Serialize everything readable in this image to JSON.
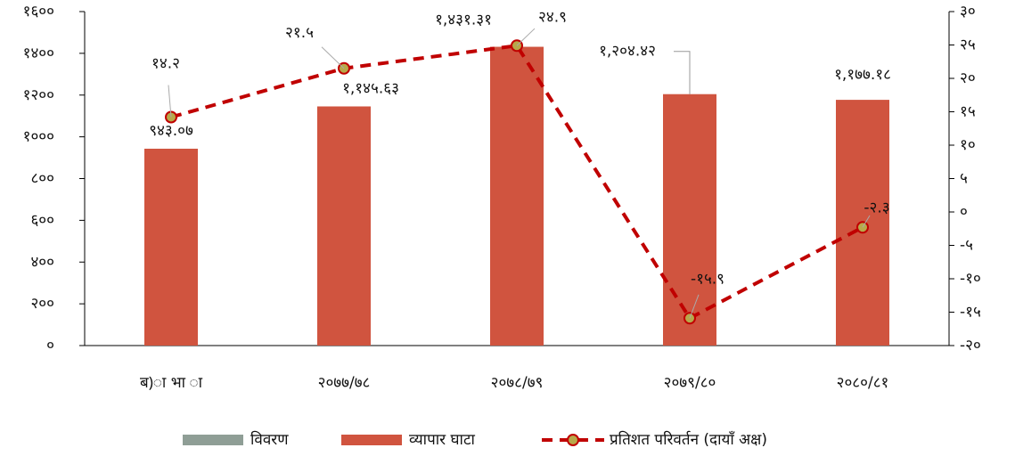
{
  "chart_data": {
    "type": "bar_line",
    "categories": [
      "ब)ा भा ा",
      "२०७७/७८",
      "२०७८/७९",
      "२०७९/८०",
      "२०८०/८१"
    ],
    "series": [
      {
        "name": "विवरण",
        "color": "#8f9e96",
        "values": [
          null,
          null,
          null,
          null,
          null
        ]
      },
      {
        "name": "व्यापार घाटा",
        "color": "#d0543f",
        "values": [
          943.07,
          1145.63,
          1431.31,
          1204.42,
          1177.18
        ],
        "value_labels": [
          "९४३.०७",
          "१,१४५.६३",
          "१,४३१.३१",
          "१,२०४.४२",
          "१,१७७.१८"
        ]
      },
      {
        "name": "प्रतिशत परिवर्तन (दायाँ अक्ष)",
        "color": "#c00000",
        "marker_color": "#b8a84a",
        "axis": "y2",
        "line_style": "dashed",
        "values": [
          14.2,
          21.5,
          24.9,
          -15.9,
          -2.3
        ],
        "value_labels": [
          "१४.२",
          "२१.५",
          "२४.९",
          "-१५.९",
          "-२.३"
        ]
      }
    ],
    "ylim": [
      0,
      1600
    ],
    "yticks": [
      {
        "value": 0,
        "label": "०"
      },
      {
        "value": 200,
        "label": "२००"
      },
      {
        "value": 400,
        "label": "४००"
      },
      {
        "value": 600,
        "label": "६००"
      },
      {
        "value": 800,
        "label": "८००"
      },
      {
        "value": 1000,
        "label": "१०००"
      },
      {
        "value": 1200,
        "label": "१२००"
      },
      {
        "value": 1400,
        "label": "१४००"
      },
      {
        "value": 1600,
        "label": "१६००"
      }
    ],
    "y2lim": [
      -20,
      30
    ],
    "y2ticks": [
      {
        "value": -20,
        "label": "-२०"
      },
      {
        "value": -15,
        "label": "-१५"
      },
      {
        "value": -10,
        "label": "-१०"
      },
      {
        "value": -5,
        "label": "-५"
      },
      {
        "value": 0,
        "label": "०"
      },
      {
        "value": 5,
        "label": "५"
      },
      {
        "value": 10,
        "label": "१०"
      },
      {
        "value": 15,
        "label": "१५"
      },
      {
        "value": 20,
        "label": "२०"
      },
      {
        "value": 25,
        "label": "२५"
      },
      {
        "value": 30,
        "label": "३०"
      }
    ],
    "legend": "bottom"
  }
}
